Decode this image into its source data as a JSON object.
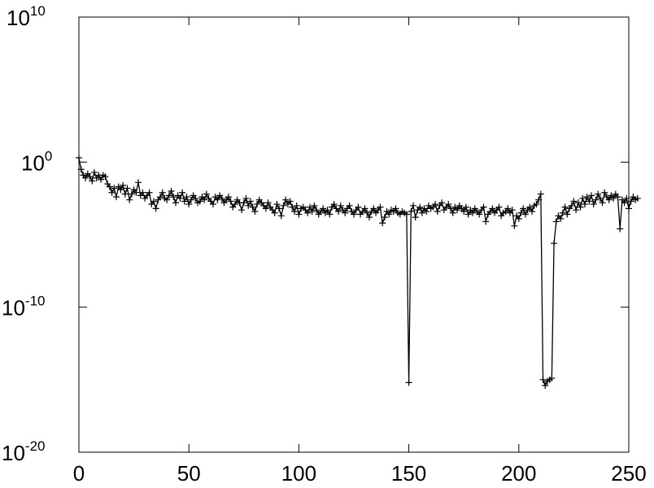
{
  "chart_data": {
    "type": "line",
    "title": "",
    "xlabel": "",
    "ylabel": "",
    "xlim": [
      0,
      250
    ],
    "ylim_exponents": [
      -20,
      10
    ],
    "yscale": "log",
    "grid": false,
    "legend": "none",
    "marker": "+",
    "line_color": "#000000",
    "x_ticks": [
      "0",
      "50",
      "100",
      "150",
      "200",
      "250"
    ],
    "y_ticks": [
      {
        "base": "10",
        "exp": "10"
      },
      {
        "base": "10",
        "exp": "0"
      },
      {
        "base": "10",
        "exp": "-10"
      },
      {
        "base": "10",
        "exp": "-20"
      }
    ],
    "series": [
      {
        "log10_values": [
          0.3,
          -0.5,
          -0.9,
          -1.1,
          -0.8,
          -1.0,
          -1.3,
          -0.7,
          -1.1,
          -0.9,
          -1.2,
          -0.9,
          -1.0,
          -1.5,
          -1.7,
          -2.1,
          -1.8,
          -2.4,
          -1.7,
          -1.9,
          -1.6,
          -2.2,
          -1.8,
          -2.6,
          -2.2,
          -1.9,
          -2.1,
          -1.4,
          -2.3,
          -2.1,
          -2.5,
          -2.3,
          -2.1,
          -2.9,
          -2.7,
          -3.2,
          -2.6,
          -2.4,
          -2.1,
          -2.5,
          -2.6,
          -2.3,
          -2.0,
          -2.4,
          -2.8,
          -2.3,
          -2.5,
          -2.1,
          -2.7,
          -2.4,
          -2.9,
          -2.6,
          -2.3,
          -2.5,
          -2.8,
          -2.7,
          -2.4,
          -2.6,
          -2.2,
          -2.5,
          -2.7,
          -2.9,
          -2.4,
          -2.6,
          -2.3,
          -2.5,
          -2.8,
          -2.6,
          -2.4,
          -2.7,
          -3.1,
          -2.9,
          -2.6,
          -2.8,
          -3.3,
          -2.8,
          -2.5,
          -3.0,
          -2.7,
          -3.1,
          -3.4,
          -2.9,
          -2.6,
          -2.8,
          -3.0,
          -3.2,
          -2.8,
          -3.1,
          -3.3,
          -3.5,
          -2.9,
          -3.2,
          -3.7,
          -3.0,
          -2.6,
          -2.9,
          -2.7,
          -3.1,
          -3.4,
          -3.0,
          -3.6,
          -3.2,
          -3.1,
          -3.3,
          -3.5,
          -3.1,
          -3.4,
          -3.0,
          -3.3,
          -3.6,
          -3.4,
          -3.2,
          -3.5,
          -3.3,
          -3.6,
          -3.1,
          -2.9,
          -3.2,
          -3.4,
          -3.0,
          -3.3,
          -3.5,
          -3.2,
          -3.0,
          -3.4,
          -3.6,
          -3.3,
          -3.1,
          -3.6,
          -3.4,
          -3.2,
          -3.5,
          -3.8,
          -3.4,
          -3.2,
          -3.5,
          -3.3,
          -3.1,
          -4.2,
          -3.8,
          -3.4,
          -3.6,
          -3.3,
          -3.4,
          -3.2,
          -3.5,
          -3.6,
          -3.4,
          -3.5,
          -3.6,
          -15.2,
          -3.4,
          -3.0,
          -3.8,
          -3.3,
          -3.1,
          -3.5,
          -3.2,
          -3.4,
          -3.0,
          -3.2,
          -3.1,
          -2.9,
          -3.4,
          -3.0,
          -2.8,
          -3.3,
          -3.1,
          -2.9,
          -3.2,
          -3.5,
          -3.1,
          -3.3,
          -3.0,
          -3.2,
          -3.4,
          -3.1,
          -3.6,
          -3.3,
          -3.5,
          -3.2,
          -3.4,
          -3.6,
          -3.3,
          -3.1,
          -4.1,
          -3.6,
          -3.4,
          -3.2,
          -3.5,
          -3.3,
          -3.1,
          -3.7,
          -3.5,
          -3.4,
          -3.2,
          -3.5,
          -3.3,
          -4.4,
          -3.7,
          -3.9,
          -3.5,
          -3.2,
          -3.6,
          -3.3,
          -3.1,
          -3.4,
          -3.0,
          -2.9,
          -2.6,
          -2.2,
          -15.0,
          -15.4,
          -15.1,
          -15.0,
          -14.9,
          -5.6,
          -4.1,
          -3.7,
          -3.9,
          -3.5,
          -3.1,
          -3.6,
          -3.2,
          -3.0,
          -2.7,
          -3.3,
          -2.8,
          -3.1,
          -2.5,
          -2.9,
          -2.4,
          -2.7,
          -2.3,
          -2.9,
          -2.6,
          -2.2,
          -2.5,
          -2.8,
          -2.1,
          -2.4,
          -2.6,
          -2.3,
          -2.5,
          -2.2,
          -2.4,
          -4.6,
          -2.6,
          -2.8,
          -2.5,
          -3.2,
          -2.7,
          -2.4,
          -2.6,
          -2.5
        ]
      }
    ]
  }
}
